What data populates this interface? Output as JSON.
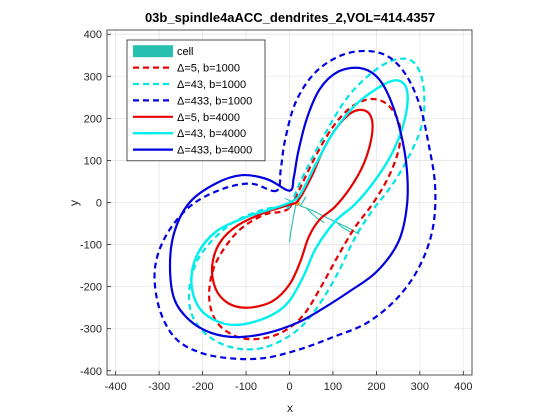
{
  "chart_data": {
    "type": "line",
    "title": "03b_spindle4aACC_dendrites_2,VOL=414.4357",
    "xlabel": "x",
    "ylabel": "y",
    "xlim": [
      -420,
      420
    ],
    "ylim": [
      -410,
      410
    ],
    "xticks": [
      -400,
      -300,
      -200,
      -100,
      0,
      100,
      200,
      300,
      400
    ],
    "yticks": [
      -400,
      -300,
      -200,
      -100,
      0,
      100,
      200,
      300,
      400
    ],
    "grid": true,
    "legend_position": "top-left",
    "cell": {
      "name": "cell",
      "color": "#26BFB0",
      "segments": [
        [
          [
            5,
            2
          ],
          [
            15,
            -3
          ],
          [
            25,
            -8
          ],
          [
            40,
            -14
          ],
          [
            55,
            -20
          ],
          [
            70,
            -28
          ],
          [
            90,
            -38
          ],
          [
            110,
            -48
          ],
          [
            135,
            -60
          ],
          [
            160,
            -75
          ]
        ],
        [
          [
            15,
            -3
          ],
          [
            12,
            -18
          ],
          [
            8,
            -40
          ],
          [
            3,
            -70
          ],
          [
            0,
            -95
          ]
        ],
        [
          [
            40,
            -14
          ],
          [
            50,
            -25
          ],
          [
            65,
            -38
          ],
          [
            80,
            -48
          ]
        ],
        [
          [
            110,
            -48
          ],
          [
            120,
            -58
          ],
          [
            140,
            -70
          ]
        ],
        [
          [
            25,
            -8
          ],
          [
            32,
            4
          ],
          [
            38,
            14
          ]
        ],
        [
          [
            15,
            -3
          ],
          [
            20,
            8
          ],
          [
            18,
            16
          ]
        ],
        [
          [
            -10,
            10
          ],
          [
            5,
            2
          ]
        ]
      ],
      "soma_point": [
        18,
        -2
      ],
      "soma_color": "#E0A030"
    },
    "series": [
      {
        "name": "Δ=5, b=1000",
        "color": "#E60000",
        "dash": "dashed",
        "width": 2.2,
        "points": [
          [
            0,
            -12
          ],
          [
            20,
            25
          ],
          [
            60,
            110
          ],
          [
            100,
            180
          ],
          [
            140,
            225
          ],
          [
            180,
            245
          ],
          [
            215,
            240
          ],
          [
            240,
            215
          ],
          [
            255,
            175
          ],
          [
            250,
            120
          ],
          [
            225,
            55
          ],
          [
            190,
            -5
          ],
          [
            150,
            -60
          ],
          [
            110,
            -130
          ],
          [
            70,
            -205
          ],
          [
            30,
            -270
          ],
          [
            -20,
            -310
          ],
          [
            -80,
            -325
          ],
          [
            -130,
            -315
          ],
          [
            -170,
            -280
          ],
          [
            -185,
            -220
          ],
          [
            -170,
            -145
          ],
          [
            -120,
            -70
          ],
          [
            -60,
            -30
          ],
          [
            -20,
            -22
          ],
          [
            0,
            -12
          ]
        ]
      },
      {
        "name": "Δ=43, b=1000",
        "color": "#00E5E5",
        "dash": "dashed",
        "width": 2.2,
        "points": [
          [
            0,
            -8
          ],
          [
            30,
            60
          ],
          [
            80,
            160
          ],
          [
            130,
            245
          ],
          [
            180,
            300
          ],
          [
            230,
            335
          ],
          [
            275,
            340
          ],
          [
            300,
            310
          ],
          [
            310,
            255
          ],
          [
            305,
            185
          ],
          [
            275,
            110
          ],
          [
            235,
            40
          ],
          [
            190,
            -20
          ],
          [
            150,
            -85
          ],
          [
            110,
            -170
          ],
          [
            60,
            -255
          ],
          [
            10,
            -310
          ],
          [
            -60,
            -345
          ],
          [
            -130,
            -345
          ],
          [
            -190,
            -315
          ],
          [
            -225,
            -265
          ],
          [
            -230,
            -200
          ],
          [
            -205,
            -125
          ],
          [
            -140,
            -55
          ],
          [
            -70,
            -20
          ],
          [
            -20,
            -10
          ],
          [
            0,
            -8
          ]
        ]
      },
      {
        "name": "Δ=433, b=1000",
        "color": "#0000E0",
        "dash": "dashed",
        "width": 2.2,
        "points": [
          [
            -30,
            28
          ],
          [
            -90,
            45
          ],
          [
            -160,
            30
          ],
          [
            -230,
            -10
          ],
          [
            -285,
            -80
          ],
          [
            -310,
            -160
          ],
          [
            -300,
            -250
          ],
          [
            -265,
            -320
          ],
          [
            -210,
            -355
          ],
          [
            -140,
            -370
          ],
          [
            -60,
            -370
          ],
          [
            20,
            -350
          ],
          [
            100,
            -320
          ],
          [
            180,
            -285
          ],
          [
            250,
            -225
          ],
          [
            300,
            -150
          ],
          [
            330,
            -60
          ],
          [
            335,
            40
          ],
          [
            320,
            140
          ],
          [
            300,
            230
          ],
          [
            270,
            300
          ],
          [
            230,
            345
          ],
          [
            180,
            360
          ],
          [
            120,
            350
          ],
          [
            60,
            310
          ],
          [
            15,
            240
          ],
          [
            -10,
            150
          ],
          [
            -20,
            80
          ],
          [
            -30,
            28
          ]
        ]
      },
      {
        "name": "Δ=5, b=4000",
        "color": "#E60000",
        "dash": "solid",
        "width": 2.2,
        "points": [
          [
            0,
            -5
          ],
          [
            20,
            5
          ],
          [
            50,
            60
          ],
          [
            80,
            130
          ],
          [
            110,
            180
          ],
          [
            145,
            215
          ],
          [
            175,
            218
          ],
          [
            190,
            195
          ],
          [
            188,
            150
          ],
          [
            170,
            90
          ],
          [
            140,
            35
          ],
          [
            105,
            -10
          ],
          [
            70,
            -40
          ],
          [
            45,
            -80
          ],
          [
            25,
            -140
          ],
          [
            0,
            -195
          ],
          [
            -40,
            -235
          ],
          [
            -95,
            -250
          ],
          [
            -140,
            -240
          ],
          [
            -170,
            -205
          ],
          [
            -178,
            -150
          ],
          [
            -160,
            -95
          ],
          [
            -120,
            -55
          ],
          [
            -60,
            -25
          ],
          [
            -20,
            -12
          ],
          [
            0,
            -5
          ]
        ]
      },
      {
        "name": "Δ=43, b=4000",
        "color": "#00F0F0",
        "dash": "solid",
        "width": 2.4,
        "points": [
          [
            0,
            0
          ],
          [
            25,
            20
          ],
          [
            60,
            90
          ],
          [
            100,
            165
          ],
          [
            150,
            230
          ],
          [
            200,
            270
          ],
          [
            240,
            290
          ],
          [
            265,
            280
          ],
          [
            272,
            245
          ],
          [
            262,
            185
          ],
          [
            235,
            115
          ],
          [
            195,
            50
          ],
          [
            150,
            -5
          ],
          [
            105,
            -45
          ],
          [
            60,
            -110
          ],
          [
            30,
            -180
          ],
          [
            -10,
            -245
          ],
          [
            -70,
            -280
          ],
          [
            -140,
            -290
          ],
          [
            -200,
            -260
          ],
          [
            -225,
            -200
          ],
          [
            -215,
            -130
          ],
          [
            -170,
            -70
          ],
          [
            -100,
            -35
          ],
          [
            -40,
            -15
          ],
          [
            0,
            0
          ]
        ]
      },
      {
        "name": "Δ=433, b=4000",
        "color": "#0000E0",
        "dash": "solid",
        "width": 2.2,
        "points": [
          [
            0,
            28
          ],
          [
            -50,
            55
          ],
          [
            -110,
            65
          ],
          [
            -170,
            45
          ],
          [
            -230,
            0
          ],
          [
            -265,
            -70
          ],
          [
            -275,
            -150
          ],
          [
            -265,
            -230
          ],
          [
            -230,
            -280
          ],
          [
            -180,
            -310
          ],
          [
            -120,
            -320
          ],
          [
            -50,
            -310
          ],
          [
            20,
            -285
          ],
          [
            80,
            -250
          ],
          [
            140,
            -210
          ],
          [
            200,
            -165
          ],
          [
            250,
            -95
          ],
          [
            270,
            -10
          ],
          [
            270,
            80
          ],
          [
            255,
            170
          ],
          [
            230,
            250
          ],
          [
            200,
            300
          ],
          [
            160,
            320
          ],
          [
            110,
            310
          ],
          [
            70,
            270
          ],
          [
            40,
            200
          ],
          [
            20,
            120
          ],
          [
            10,
            60
          ],
          [
            0,
            28
          ]
        ]
      }
    ]
  }
}
